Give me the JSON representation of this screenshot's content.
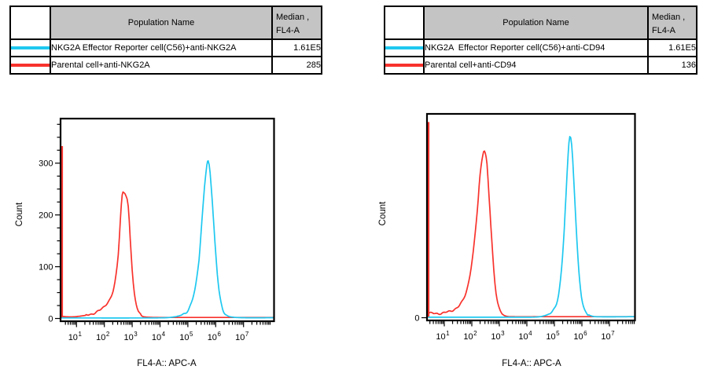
{
  "colors": {
    "cyan": "#1ec8f0",
    "red": "#f8322c",
    "table_header_bg": "#c4c4c4",
    "axis": "#000000",
    "background": "#ffffff"
  },
  "tables": {
    "left": {
      "header": {
        "population": "Population Name",
        "median_line1": "Median ,",
        "median_line2": "FL4-A"
      },
      "rows": [
        {
          "name": "NKG2A Effector Reporter cell(C56)+anti-NKG2A",
          "median": "1.61E5",
          "swatch": "cyan"
        },
        {
          "name": "Parental cell+anti-NKG2A",
          "median": "285",
          "swatch": "red"
        }
      ]
    },
    "right": {
      "header": {
        "population": "Population Name",
        "median_line1": "Median ,",
        "median_line2": "FL4-A"
      },
      "rows": [
        {
          "name": "NKG2A  Effector Reporter cell(C56)+anti-CD94",
          "median": "1.61E5",
          "swatch": "cyan"
        },
        {
          "name": "Parental cell+anti-CD94",
          "median": "136",
          "swatch": "red"
        }
      ]
    }
  },
  "chart_data": [
    {
      "type": "line",
      "subtype": "flow-cytometry-histogram",
      "xlabel": "FL4-A:: APC-A",
      "ylabel": "Count",
      "x_scale": "biexponential-log10",
      "x_decades_labeled": [
        1,
        2,
        3,
        4,
        5,
        6,
        7
      ],
      "x_range_log": [
        0.48,
        8.09
      ],
      "y_ticks": [
        0,
        100,
        200,
        300
      ],
      "y_minor_step": 25,
      "ylim": [
        0,
        380
      ],
      "grid": false,
      "series": [
        {
          "name": "Parental cell+anti-NKG2A",
          "color_key": "red",
          "median_FL4A": "285",
          "peak_count_est": 243,
          "peak_x_log10_est": 2.7,
          "edge_spike_count": 333,
          "points_log_count": [
            [
              0.48,
              4
            ],
            [
              0.8,
              3
            ],
            [
              1.2,
              5
            ],
            [
              1.5,
              8
            ],
            [
              1.75,
              13
            ],
            [
              1.95,
              21
            ],
            [
              2.1,
              30
            ],
            [
              2.25,
              42
            ],
            [
              2.38,
              70
            ],
            [
              2.5,
              125
            ],
            [
              2.58,
              195
            ],
            [
              2.64,
              238
            ],
            [
              2.7,
              243
            ],
            [
              2.78,
              236
            ],
            [
              2.86,
              215
            ],
            [
              2.93,
              155
            ],
            [
              3.0,
              95
            ],
            [
              3.08,
              48
            ],
            [
              3.18,
              20
            ],
            [
              3.3,
              7
            ],
            [
              3.45,
              3
            ],
            [
              4.0,
              2
            ],
            [
              5.0,
              2
            ],
            [
              6.0,
              2
            ],
            [
              7.0,
              2
            ],
            [
              8.09,
              2
            ]
          ]
        },
        {
          "name": "NKG2A Effector Reporter cell(C56)+anti-NKG2A",
          "color_key": "cyan",
          "median_FL4A": "1.61E5",
          "peak_count_est": 303,
          "peak_x_log10_est": 5.73,
          "edge_spike_count": 0,
          "points_log_count": [
            [
              0.48,
              1
            ],
            [
              1.5,
              1
            ],
            [
              3.0,
              1
            ],
            [
              4.2,
              1.5
            ],
            [
              4.6,
              4
            ],
            [
              4.85,
              9
            ],
            [
              5.05,
              20
            ],
            [
              5.25,
              55
            ],
            [
              5.4,
              115
            ],
            [
              5.5,
              185
            ],
            [
              5.6,
              255
            ],
            [
              5.68,
              295
            ],
            [
              5.73,
              303
            ],
            [
              5.8,
              282
            ],
            [
              5.88,
              225
            ],
            [
              5.97,
              150
            ],
            [
              6.06,
              85
            ],
            [
              6.15,
              42
            ],
            [
              6.25,
              18
            ],
            [
              6.38,
              7
            ],
            [
              6.55,
              3
            ],
            [
              7.0,
              1.5
            ],
            [
              8.09,
              1.5
            ]
          ]
        }
      ]
    },
    {
      "type": "line",
      "subtype": "flow-cytometry-histogram",
      "xlabel": "FL4-A:: APC-A",
      "ylabel": "Count",
      "x_scale": "biexponential-log10",
      "x_decades_labeled": [
        1,
        2,
        3,
        4,
        5,
        6,
        7
      ],
      "x_range_log": [
        0.43,
        7.91
      ],
      "y_ticks": [
        0
      ],
      "y_minor_step": 0,
      "ylim": [
        0,
        400
      ],
      "y_axis_numbered": false,
      "grid": false,
      "series": [
        {
          "name": "Parental cell+anti-CD94",
          "color_key": "red",
          "median_FL4A": "136",
          "peak_count_est": 332,
          "peak_x_log10_est": 2.46,
          "edge_spike_count": 390,
          "points_log_count": [
            [
              0.43,
              10
            ],
            [
              0.7,
              8
            ],
            [
              1.0,
              10
            ],
            [
              1.3,
              15
            ],
            [
              1.55,
              24
            ],
            [
              1.75,
              45
            ],
            [
              1.9,
              75
            ],
            [
              2.05,
              130
            ],
            [
              2.2,
              215
            ],
            [
              2.3,
              285
            ],
            [
              2.4,
              325
            ],
            [
              2.46,
              332
            ],
            [
              2.55,
              305
            ],
            [
              2.63,
              240
            ],
            [
              2.72,
              160
            ],
            [
              2.8,
              95
            ],
            [
              2.88,
              50
            ],
            [
              2.97,
              22
            ],
            [
              3.1,
              8
            ],
            [
              3.25,
              3
            ],
            [
              3.5,
              2
            ],
            [
              4.5,
              2
            ],
            [
              5.5,
              2
            ],
            [
              6.5,
              2
            ],
            [
              7.91,
              2
            ]
          ]
        },
        {
          "name": "NKG2A  Effector Reporter cell(C56)+anti-CD94",
          "color_key": "cyan",
          "median_FL4A": "1.61E5",
          "peak_count_est": 362,
          "peak_x_log10_est": 5.56,
          "edge_spike_count": 0,
          "points_log_count": [
            [
              0.43,
              1
            ],
            [
              2.0,
              1
            ],
            [
              3.5,
              1
            ],
            [
              4.4,
              1.5
            ],
            [
              4.7,
              5
            ],
            [
              4.9,
              11
            ],
            [
              5.08,
              28
            ],
            [
              5.22,
              75
            ],
            [
              5.33,
              150
            ],
            [
              5.42,
              240
            ],
            [
              5.5,
              325
            ],
            [
              5.56,
              362
            ],
            [
              5.63,
              345
            ],
            [
              5.7,
              280
            ],
            [
              5.78,
              195
            ],
            [
              5.86,
              115
            ],
            [
              5.95,
              55
            ],
            [
              6.06,
              22
            ],
            [
              6.18,
              9
            ],
            [
              6.32,
              4
            ],
            [
              6.5,
              2
            ],
            [
              7.91,
              2
            ]
          ]
        }
      ]
    }
  ]
}
